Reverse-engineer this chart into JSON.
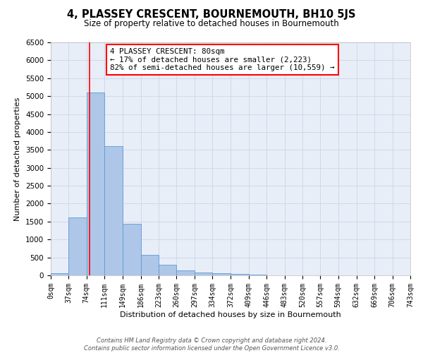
{
  "title": "4, PLASSEY CRESCENT, BOURNEMOUTH, BH10 5JS",
  "subtitle": "Size of property relative to detached houses in Bournemouth",
  "xlabel": "Distribution of detached houses by size in Bournemouth",
  "ylabel": "Number of detached properties",
  "footer_lines": [
    "Contains HM Land Registry data © Crown copyright and database right 2024.",
    "Contains public sector information licensed under the Open Government Licence v3.0."
  ],
  "bin_edges": [
    0,
    37,
    74,
    111,
    149,
    186,
    223,
    260,
    297,
    334,
    372,
    409,
    446,
    483,
    520,
    557,
    594,
    632,
    669,
    706,
    743
  ],
  "bar_heights": [
    50,
    1620,
    5100,
    3600,
    1430,
    580,
    300,
    140,
    75,
    50,
    30,
    10,
    5,
    0,
    0,
    0,
    0,
    0,
    0,
    0
  ],
  "bar_color": "#aec6e8",
  "bar_edge_color": "#5b9bd5",
  "red_line_x": 80,
  "ylim": [
    0,
    6500
  ],
  "yticks": [
    0,
    500,
    1000,
    1500,
    2000,
    2500,
    3000,
    3500,
    4000,
    4500,
    5000,
    5500,
    6000,
    6500
  ],
  "annotation_box_text": "4 PLASSEY CRESCENT: 80sqm\n← 17% of detached houses are smaller (2,223)\n82% of semi-detached houses are larger (10,559) →",
  "grid_color": "#d0d8e8",
  "background_color": "#e8eef8",
  "tick_labels": [
    "0sqm",
    "37sqm",
    "74sqm",
    "111sqm",
    "149sqm",
    "186sqm",
    "223sqm",
    "260sqm",
    "297sqm",
    "334sqm",
    "372sqm",
    "409sqm",
    "446sqm",
    "483sqm",
    "520sqm",
    "557sqm",
    "594sqm",
    "632sqm",
    "669sqm",
    "706sqm",
    "743sqm"
  ]
}
